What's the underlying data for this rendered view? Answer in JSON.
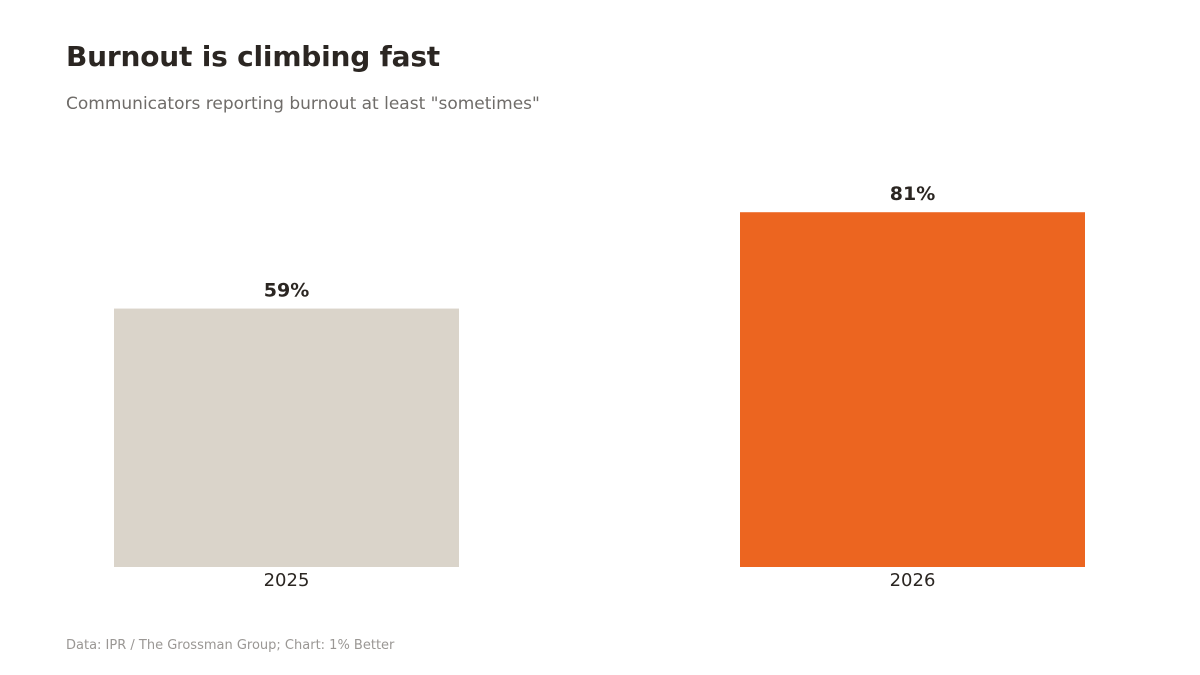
{
  "header": {
    "title": "Burnout is climbing fast",
    "subtitle": "Communicators reporting burnout at least \"sometimes\""
  },
  "footer": {
    "source": "Data: IPR / The Grossman Group; Chart: 1% Better"
  },
  "colors": {
    "baseline_bar": "#dad4ca",
    "highlight_bar": "#ec6520",
    "text_dark": "#2b2622",
    "text_muted": "#6f6c69"
  },
  "chart_data": {
    "type": "bar",
    "categories": [
      "2025",
      "2026"
    ],
    "values": [
      59,
      81
    ],
    "value_labels": [
      "59%",
      "81%"
    ],
    "bar_colors": [
      "#dad4ca",
      "#ec6520"
    ],
    "title": "Burnout is climbing fast",
    "subtitle": "Communicators reporting burnout at least \"sometimes\"",
    "xlabel": "",
    "ylabel": "",
    "ylim": [
      0,
      100
    ],
    "grid": false,
    "legend": "none"
  }
}
